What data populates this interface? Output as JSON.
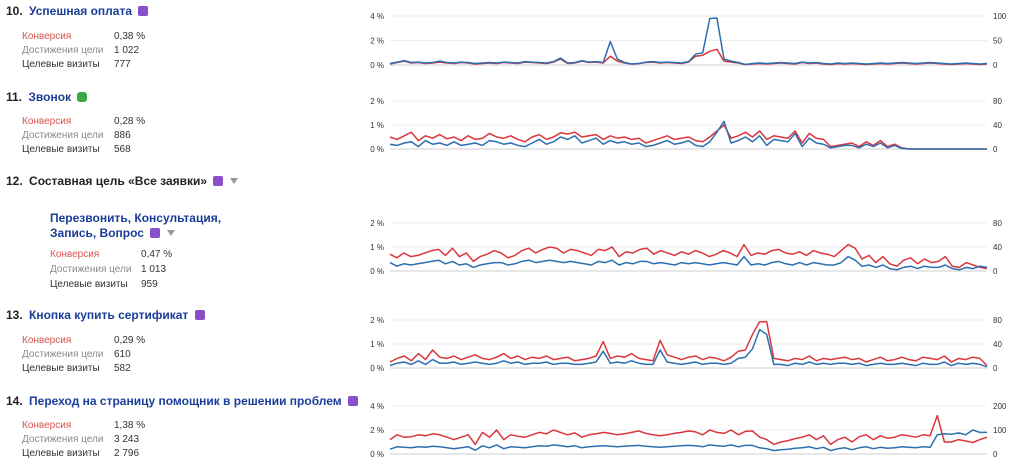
{
  "goals": [
    {
      "number": "10.",
      "title": "Успешная оплата",
      "badge": "purple-goal-icon",
      "subtitle": "",
      "stats": {
        "conversion_label": "Конверсия",
        "conversion": "0,38 %",
        "achievements_label": "Достижения цели",
        "achievements": "1 022",
        "visits_label": "Целевые визиты",
        "visits": "777"
      },
      "chart_data": {
        "type": "line",
        "left_ticks": [
          "4 %",
          "2 %",
          "0 %"
        ],
        "right_ticks": [
          "100",
          "50",
          "0"
        ],
        "left_max": 4,
        "right_max": 100,
        "series": [
          {
            "axis": "right",
            "color": "#d9363e",
            "values": [
              2,
              5,
              8,
              4,
              5,
              3,
              4,
              6,
              4,
              3,
              5,
              4,
              2,
              3,
              4,
              3,
              5,
              4,
              3,
              6,
              5,
              4,
              3,
              6,
              12,
              3,
              4,
              8,
              5,
              6,
              4,
              18,
              8,
              4,
              2,
              3,
              5,
              6,
              4,
              5,
              4,
              3,
              6,
              18,
              20,
              28,
              32,
              8,
              6,
              4,
              1,
              2,
              3,
              2,
              3,
              4,
              3,
              2,
              5,
              3,
              4,
              2,
              1,
              3,
              2,
              3,
              2,
              1,
              2,
              3,
              2,
              3,
              4,
              3,
              2,
              3,
              4,
              3,
              2,
              1,
              2,
              3,
              2,
              1,
              2
            ]
          },
          {
            "axis": "right",
            "color": "#2c6fb0",
            "values": [
              3,
              6,
              9,
              5,
              6,
              4,
              5,
              8,
              5,
              4,
              6,
              5,
              3,
              4,
              5,
              4,
              6,
              5,
              4,
              7,
              6,
              5,
              4,
              7,
              14,
              4,
              5,
              9,
              6,
              7,
              5,
              48,
              12,
              5,
              2,
              3,
              6,
              7,
              5,
              6,
              5,
              4,
              7,
              22,
              25,
              95,
              96,
              12,
              8,
              5,
              1,
              3,
              4,
              3,
              4,
              5,
              4,
              3,
              6,
              4,
              5,
              3,
              2,
              4,
              3,
              4,
              3,
              2,
              3,
              4,
              3,
              4,
              5,
              4,
              3,
              4,
              5,
              4,
              3,
              2,
              3,
              4,
              3,
              2,
              3
            ]
          }
        ]
      }
    },
    {
      "number": "11.",
      "title": "Звонок",
      "badge": "phone-goal-icon",
      "subtitle": "",
      "stats": {
        "conversion_label": "Конверсия",
        "conversion": "0,28 %",
        "achievements_label": "Достижения цели",
        "achievements": "886",
        "visits_label": "Целевые визиты",
        "visits": "568"
      },
      "chart_data": {
        "type": "line",
        "left_ticks": [
          "2 %",
          "1 %",
          "0 %"
        ],
        "right_ticks": [
          "80",
          "40",
          "0"
        ],
        "left_max": 2,
        "right_max": 80,
        "series": [
          {
            "axis": "right",
            "color": "#d9363e",
            "values": [
              20,
              16,
              22,
              28,
              14,
              22,
              18,
              24,
              17,
              20,
              14,
              22,
              16,
              18,
              26,
              20,
              18,
              22,
              16,
              12,
              20,
              24,
              16,
              20,
              27,
              25,
              28,
              20,
              22,
              24,
              16,
              22,
              18,
              20,
              16,
              18,
              10,
              14,
              18,
              22,
              16,
              18,
              20,
              14,
              12,
              20,
              30,
              40,
              18,
              22,
              28,
              20,
              30,
              16,
              22,
              20,
              18,
              30,
              10,
              26,
              18,
              16,
              4,
              6,
              8,
              10,
              4,
              12,
              6,
              14,
              4,
              8,
              2,
              0,
              0,
              0,
              0,
              0,
              0,
              0,
              0,
              0,
              0,
              0,
              0
            ]
          },
          {
            "axis": "right",
            "color": "#2c6fb0",
            "values": [
              8,
              6,
              10,
              12,
              4,
              14,
              8,
              10,
              6,
              12,
              6,
              8,
              10,
              6,
              14,
              12,
              8,
              10,
              6,
              4,
              10,
              16,
              8,
              12,
              20,
              16,
              22,
              10,
              14,
              18,
              8,
              14,
              10,
              12,
              8,
              10,
              4,
              6,
              10,
              14,
              8,
              10,
              14,
              6,
              4,
              12,
              28,
              46,
              10,
              14,
              20,
              12,
              22,
              6,
              16,
              14,
              12,
              26,
              4,
              18,
              10,
              8,
              2,
              4,
              6,
              6,
              2,
              8,
              4,
              10,
              2,
              6,
              1,
              0,
              0,
              0,
              0,
              0,
              0,
              0,
              0,
              0,
              0,
              0,
              0
            ]
          }
        ]
      }
    },
    {
      "number": "12.",
      "title": "Составная цель «Все заявки»",
      "badge": "composite-goal-icon",
      "subtitle": "Перезвонить, Консультация, Запись, Вопрос",
      "stats": {
        "conversion_label": "Конверсия",
        "conversion": "0,47 %",
        "achievements_label": "Достижения цели",
        "achievements": "1 013",
        "visits_label": "Целевые визиты",
        "visits": "959"
      },
      "chart_data": {
        "type": "line",
        "left_ticks": [
          "2 %",
          "1 %",
          "0 %"
        ],
        "right_ticks": [
          "80",
          "40",
          "0"
        ],
        "left_max": 2,
        "right_max": 80,
        "series": [
          {
            "axis": "right",
            "color": "#d9363e",
            "values": [
              28,
              22,
              30,
              24,
              26,
              30,
              34,
              36,
              26,
              38,
              24,
              30,
              16,
              24,
              28,
              34,
              30,
              22,
              26,
              34,
              38,
              30,
              36,
              40,
              38,
              30,
              36,
              34,
              30,
              26,
              36,
              34,
              40,
              24,
              32,
              30,
              36,
              38,
              28,
              34,
              30,
              26,
              32,
              28,
              34,
              30,
              24,
              28,
              34,
              30,
              24,
              44,
              26,
              30,
              28,
              34,
              36,
              30,
              28,
              32,
              26,
              34,
              30,
              28,
              24,
              34,
              44,
              38,
              20,
              26,
              14,
              24,
              12,
              8,
              18,
              22,
              12,
              20,
              14,
              16,
              24,
              8,
              6,
              14,
              10,
              6,
              4
            ]
          },
          {
            "axis": "right",
            "color": "#2c6fb0",
            "values": [
              14,
              8,
              12,
              10,
              12,
              14,
              16,
              18,
              12,
              16,
              10,
              12,
              6,
              10,
              12,
              14,
              14,
              10,
              12,
              16,
              18,
              14,
              16,
              18,
              16,
              14,
              16,
              14,
              12,
              10,
              16,
              14,
              18,
              10,
              14,
              12,
              16,
              16,
              12,
              14,
              12,
              10,
              14,
              12,
              14,
              12,
              10,
              12,
              14,
              12,
              10,
              24,
              10,
              12,
              10,
              14,
              16,
              12,
              10,
              14,
              10,
              14,
              12,
              10,
              10,
              14,
              24,
              18,
              8,
              10,
              6,
              10,
              4,
              2,
              6,
              8,
              4,
              8,
              6,
              6,
              10,
              4,
              2,
              6,
              4,
              8,
              6
            ]
          }
        ]
      }
    },
    {
      "number": "13.",
      "title": "Кнопка купить сертификат",
      "badge": "purple-goal-icon",
      "subtitle": "",
      "stats": {
        "conversion_label": "Конверсия",
        "conversion": "0,29 %",
        "achievements_label": "Достижения цели",
        "achievements": "610",
        "visits_label": "Целевые визиты",
        "visits": "582"
      },
      "chart_data": {
        "type": "line",
        "left_ticks": [
          "2 %",
          "1 %",
          "0 %"
        ],
        "right_ticks": [
          "80",
          "40",
          "0"
        ],
        "left_max": 2,
        "right_max": 80,
        "series": [
          {
            "axis": "right",
            "color": "#d9363e",
            "values": [
              10,
              16,
              20,
              12,
              24,
              14,
              30,
              18,
              16,
              20,
              14,
              18,
              22,
              16,
              14,
              18,
              24,
              16,
              20,
              14,
              18,
              16,
              20,
              14,
              16,
              18,
              12,
              14,
              16,
              20,
              44,
              16,
              20,
              18,
              24,
              16,
              14,
              12,
              46,
              22,
              18,
              14,
              18,
              20,
              14,
              18,
              16,
              12,
              18,
              28,
              30,
              56,
              77,
              77,
              16,
              14,
              12,
              16,
              14,
              20,
              12,
              16,
              14,
              16,
              18,
              14,
              16,
              10,
              14,
              18,
              12,
              14,
              18,
              14,
              12,
              18,
              16,
              14,
              20,
              10,
              16,
              14,
              18,
              16,
              4
            ]
          },
          {
            "axis": "right",
            "color": "#2c6fb0",
            "values": [
              4,
              8,
              10,
              6,
              12,
              6,
              14,
              8,
              8,
              10,
              6,
              8,
              10,
              8,
              6,
              8,
              12,
              8,
              10,
              6,
              8,
              8,
              10,
              6,
              8,
              8,
              6,
              6,
              8,
              10,
              28,
              8,
              10,
              8,
              12,
              8,
              6,
              6,
              30,
              10,
              8,
              6,
              8,
              10,
              6,
              8,
              8,
              6,
              8,
              16,
              18,
              32,
              64,
              56,
              6,
              6,
              4,
              8,
              6,
              10,
              6,
              8,
              6,
              8,
              8,
              6,
              8,
              4,
              6,
              8,
              6,
              6,
              8,
              6,
              4,
              8,
              6,
              6,
              10,
              4,
              8,
              6,
              8,
              6,
              2
            ]
          }
        ]
      }
    },
    {
      "number": "14.",
      "title": "Переход на страницу помощник в решении проблем",
      "badge": "purple-goal-icon",
      "subtitle": "",
      "stats": {
        "conversion_label": "Конверсия",
        "conversion": "1,38 %",
        "achievements_label": "Достижения цели",
        "achievements": "3 243",
        "visits_label": "Целевые визиты",
        "visits": "2 796"
      },
      "chart_data": {
        "type": "line",
        "left_ticks": [
          "4 %",
          "2 %",
          "0 %"
        ],
        "right_ticks": [
          "200",
          "100",
          "0"
        ],
        "left_max": 4,
        "right_max": 200,
        "series": [
          {
            "axis": "right",
            "color": "#d9363e",
            "values": [
              60,
              80,
              70,
              72,
              80,
              76,
              84,
              80,
              70,
              60,
              70,
              80,
              40,
              90,
              70,
              100,
              60,
              80,
              74,
              70,
              80,
              90,
              84,
              100,
              90,
              80,
              88,
              70,
              80,
              84,
              90,
              86,
              80,
              84,
              90,
              96,
              86,
              80,
              76,
              80,
              86,
              90,
              96,
              92,
              80,
              100,
              90,
              86,
              100,
              80,
              94,
              96,
              70,
              60,
              40,
              50,
              56,
              64,
              70,
              80,
              60,
              76,
              40,
              60,
              70,
              50,
              72,
              80,
              60,
              76,
              66,
              70,
              80,
              76,
              70,
              80,
              76,
              160,
              50,
              50,
              60,
              54,
              48,
              60,
              70
            ]
          },
          {
            "axis": "right",
            "color": "#2c6fb0",
            "values": [
              20,
              30,
              28,
              26,
              30,
              28,
              32,
              30,
              26,
              22,
              26,
              30,
              16,
              34,
              26,
              38,
              22,
              30,
              28,
              26,
              30,
              34,
              32,
              38,
              34,
              30,
              34,
              26,
              30,
              32,
              34,
              32,
              30,
              32,
              34,
              36,
              32,
              30,
              28,
              30,
              32,
              34,
              36,
              34,
              30,
              38,
              34,
              32,
              38,
              30,
              36,
              36,
              26,
              22,
              14,
              18,
              20,
              24,
              26,
              30,
              22,
              28,
              14,
              22,
              26,
              18,
              26,
              30,
              22,
              28,
              24,
              26,
              30,
              28,
              26,
              30,
              28,
              80,
              84,
              82,
              88,
              80,
              100,
              90,
              90
            ]
          }
        ]
      }
    }
  ]
}
